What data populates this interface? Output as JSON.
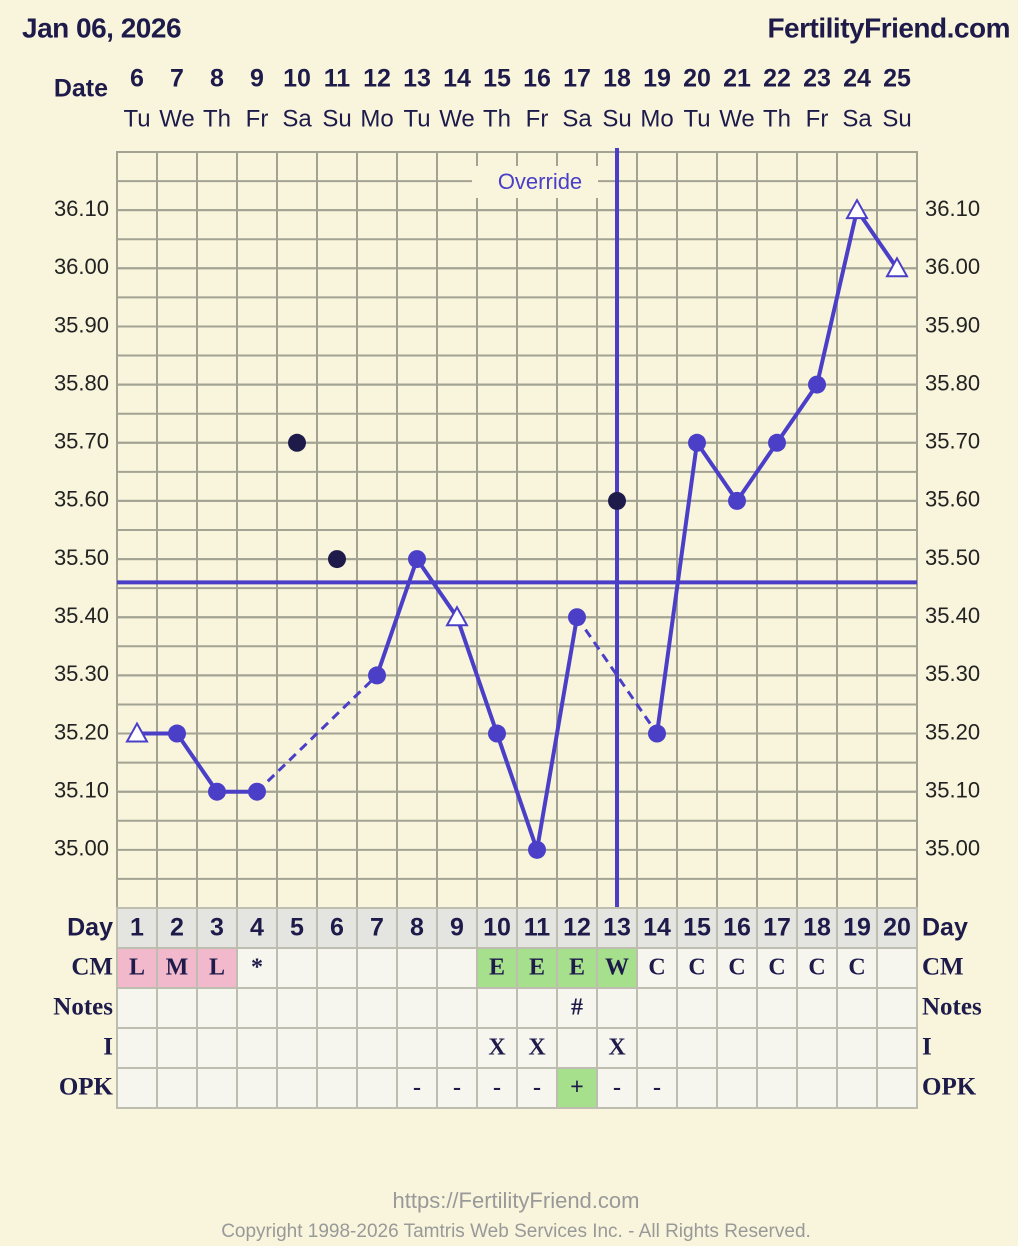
{
  "header": {
    "date": "Jan 06, 2026",
    "site": "FertilityFriend.com"
  },
  "chart_data": {
    "type": "line",
    "date_label": "Date",
    "dates": [
      6,
      7,
      8,
      9,
      10,
      11,
      12,
      13,
      14,
      15,
      16,
      17,
      18,
      19,
      20,
      21,
      22,
      23,
      24,
      25
    ],
    "weekdays": [
      "Tu",
      "We",
      "Th",
      "Fr",
      "Sa",
      "Su",
      "Mo",
      "Tu",
      "We",
      "Th",
      "Fr",
      "Sa",
      "Su",
      "Mo",
      "Tu",
      "We",
      "Th",
      "Fr",
      "Sa",
      "Su"
    ],
    "day_label": "Day",
    "categories": [
      1,
      2,
      3,
      4,
      5,
      6,
      7,
      8,
      9,
      10,
      11,
      12,
      13,
      14,
      15,
      16,
      17,
      18,
      19,
      20
    ],
    "values": [
      35.2,
      35.2,
      35.1,
      35.1,
      35.7,
      35.5,
      35.3,
      35.5,
      35.4,
      35.2,
      35.0,
      35.4,
      35.6,
      35.2,
      35.7,
      35.6,
      35.7,
      35.8,
      36.1,
      36.0
    ],
    "markers": [
      "triangle",
      "circle",
      "circle",
      "circle",
      "discarded",
      "discarded",
      "circle",
      "circle",
      "triangle",
      "circle",
      "circle",
      "circle",
      "discarded",
      "circle",
      "circle",
      "circle",
      "circle",
      "circle",
      "triangle",
      "triangle"
    ],
    "color": "#4b3fc8",
    "discarded_color": "#1e1b4b",
    "ylim": [
      34.9,
      36.2
    ],
    "yticks": [
      {
        "value": 35.0,
        "label": "35.00"
      },
      {
        "value": 35.1,
        "label": "35.10"
      },
      {
        "value": 35.2,
        "label": "35.20"
      },
      {
        "value": 35.3,
        "label": "35.30"
      },
      {
        "value": 35.4,
        "label": "35.40"
      },
      {
        "value": 35.5,
        "label": "35.50"
      },
      {
        "value": 35.6,
        "label": "35.60"
      },
      {
        "value": 35.7,
        "label": "35.70"
      },
      {
        "value": 35.8,
        "label": "35.80"
      },
      {
        "value": 35.9,
        "label": "35.90"
      },
      {
        "value": 36.0,
        "label": "36.00"
      },
      {
        "value": 36.1,
        "label": "36.10"
      }
    ],
    "coverline": 35.46,
    "override_day": 13,
    "override_label": "Override",
    "grid": true
  },
  "table": {
    "rows": [
      {
        "label": "CM",
        "cells": [
          "L",
          "M",
          "L",
          "*",
          null,
          null,
          null,
          null,
          null,
          "E",
          "E",
          "E",
          "W",
          "C",
          "C",
          "C",
          "C",
          "C",
          "C",
          null
        ]
      },
      {
        "label": "Notes",
        "cells": [
          null,
          null,
          null,
          null,
          null,
          null,
          null,
          null,
          null,
          null,
          null,
          "#",
          null,
          null,
          null,
          null,
          null,
          null,
          null,
          null
        ]
      },
      {
        "label": "I",
        "cells": [
          null,
          null,
          null,
          null,
          null,
          null,
          null,
          null,
          null,
          "X",
          "X",
          null,
          "X",
          null,
          null,
          null,
          null,
          null,
          null,
          null
        ]
      },
      {
        "label": "OPK",
        "cells": [
          null,
          null,
          null,
          null,
          null,
          null,
          null,
          "-",
          "-",
          "-",
          "-",
          "+",
          "-",
          "-",
          null,
          null,
          null,
          null,
          null,
          null
        ]
      }
    ],
    "highlight": {
      "L": "#f2b8cc",
      "M": "#f2b8cc",
      "E": "#a6e08c",
      "W": "#a6e08c",
      "+": "#a6e08c"
    }
  },
  "footer": {
    "url": "https://FertilityFriend.com",
    "copyright": "Copyright 1998-2026 Tamtris Web Services Inc. - All Rights Reserved."
  }
}
